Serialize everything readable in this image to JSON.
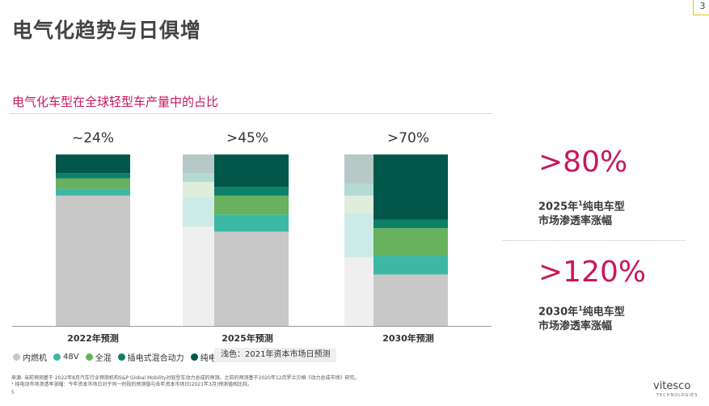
{
  "page": {
    "title": "电气化趋势与日俱增",
    "subtitle": "电气化车型在全球轻型车产量中的占比",
    "corner_label": "3",
    "page_number": "5"
  },
  "chart_data": {
    "type": "bar",
    "stacked": true,
    "categories": [
      "2022年预测",
      "2025年预测",
      "2030年预测"
    ],
    "totals_labels": [
      "~24%",
      ">45%",
      ">70%"
    ],
    "ylim": [
      0,
      100
    ],
    "series": [
      {
        "name": "内燃机",
        "color": "#c8c8c8",
        "values": [
          76,
          55,
          30
        ]
      },
      {
        "name": "48V",
        "color": "#3db8a3",
        "values": [
          4,
          10,
          11
        ]
      },
      {
        "name": "全混",
        "color": "#68b15f",
        "values": [
          6,
          11,
          16
        ]
      },
      {
        "name": "插电式混合动力",
        "color": "#0d8068",
        "values": [
          3,
          5,
          5
        ]
      },
      {
        "name": "纯电",
        "color": "#00574a",
        "values": [
          11,
          19,
          38
        ]
      }
    ],
    "reference_2021": [
      {
        "category": "2025年预测",
        "segments": [
          {
            "series": "内燃机",
            "value": 58,
            "color": "#efefef"
          },
          {
            "series": "48V",
            "value": 17,
            "color": "#cdebe6"
          },
          {
            "series": "全混",
            "value": 9,
            "color": "#dfeedc"
          },
          {
            "series": "插电式混合动力",
            "value": 5,
            "color": "#b3dad3"
          },
          {
            "series": "纯电",
            "value": 11,
            "color": "#b6c9c6"
          }
        ]
      },
      {
        "category": "2030年预测",
        "segments": [
          {
            "series": "内燃机",
            "value": 40,
            "color": "#efefef"
          },
          {
            "series": "48V",
            "value": 26,
            "color": "#cdebe6"
          },
          {
            "series": "全混",
            "value": 10,
            "color": "#dfeedc"
          },
          {
            "series": "插电式混合动力",
            "value": 7,
            "color": "#b3dad3"
          },
          {
            "series": "纯电",
            "value": 17,
            "color": "#b6c9c6"
          }
        ]
      }
    ],
    "legend_note": "浅色：2021年资本市场日预测"
  },
  "stats": [
    {
      "value": ">80%",
      "label_prefix": "2025年",
      "superscript": "1",
      "label_main": "纯电车型\n市场渗透率涨幅"
    },
    {
      "value": ">120%",
      "label_prefix": "2030年",
      "superscript": "1",
      "label_main": "纯电车型\n市场渗透率涨幅"
    }
  ],
  "footnotes": [
    "来源: 当前预测基于 2022年8月汽车行业预测机构S&P Global Mobility对轻型车动力总成的预测。之前的预测基于2020年12月罗兰贝格《动力总成市场》研究。",
    "¹ 纯电动市场渗透率涨幅：今年资本市场日对于同一时段的预测值与去年资本市场日(2021年3月)预测值相比较。"
  ],
  "logo": {
    "name": "vitesco",
    "sub": "TECHNOLOGIES"
  }
}
